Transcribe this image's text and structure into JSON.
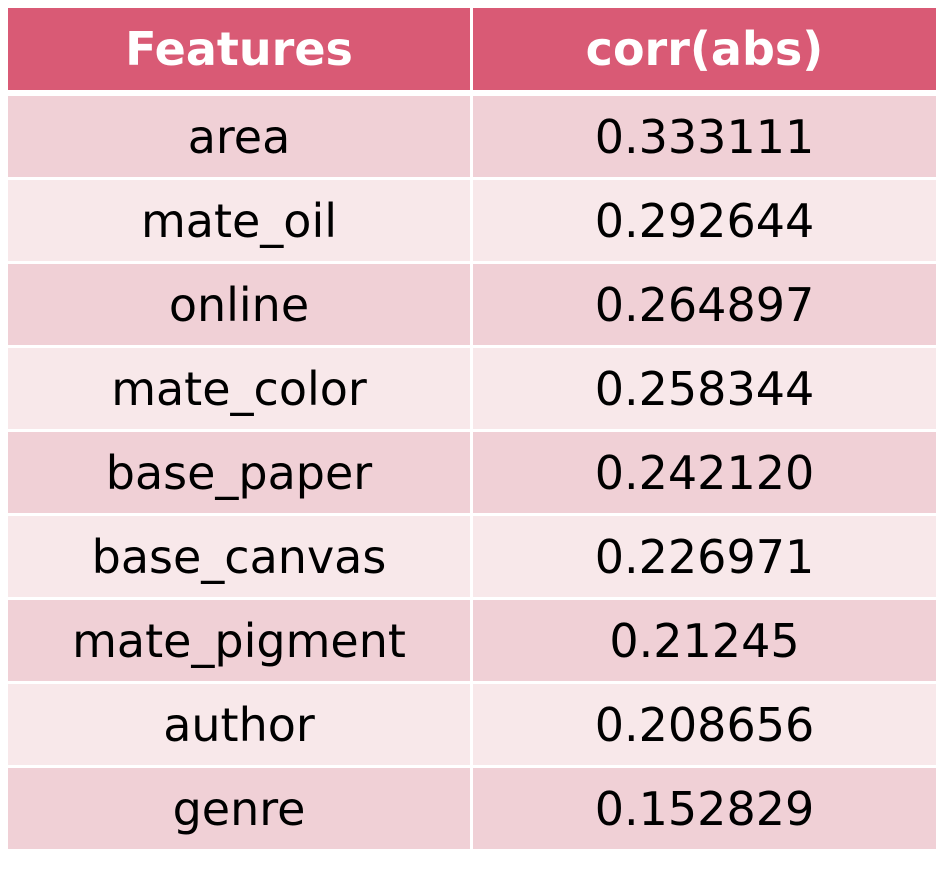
{
  "table": {
    "headers": [
      "Features",
      "corr(abs)"
    ],
    "rows": [
      [
        "area",
        "0.333111"
      ],
      [
        "mate_oil",
        "0.292644"
      ],
      [
        "online",
        "0.264897"
      ],
      [
        "mate_color",
        "0.258344"
      ],
      [
        "base_paper",
        "0.242120"
      ],
      [
        "base_canvas",
        "0.226971"
      ],
      [
        "mate_pigment",
        "0.21245"
      ],
      [
        "author",
        "0.208656"
      ],
      [
        "genre",
        "0.152829"
      ]
    ]
  },
  "colors": {
    "header_bg": "#d95a75",
    "row_odd_bg": "#f0d0d6",
    "row_even_bg": "#f8e8ea"
  }
}
